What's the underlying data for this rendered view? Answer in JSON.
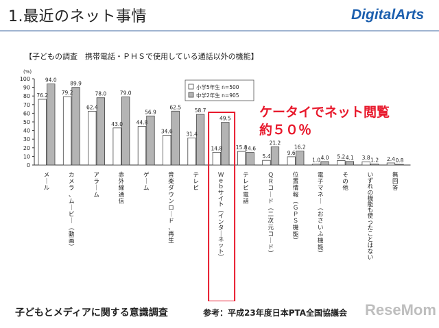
{
  "slide": {
    "title": "1.最近のネット事情",
    "logo_text": "DigitalArts",
    "footer_left": "子どもとメディアに関する意識調査",
    "footer_right": "参考：平成23年度日本PTA全国協議会",
    "watermark": "ReseMom"
  },
  "annotation": {
    "line1": "ケータイでネット閲覧",
    "line2": "約５０％",
    "color": "#e8192c"
  },
  "chart_data": {
    "type": "bar",
    "title": "【子どもの調査　携帯電話・ＰＨＳで使用している通話以外の機能】",
    "ylabel": "(%)",
    "ylim": [
      0,
      100
    ],
    "yticks": [
      "0",
      "10",
      "20",
      "30",
      "40",
      "50",
      "60",
      "70",
      "80",
      "90",
      "100"
    ],
    "categories": [
      "メール",
      "カメラ、ムービー（動画）",
      "アラーム",
      "赤外線通信",
      "ゲーム",
      "音楽ダウンロード、再生",
      "テレビ",
      "Ｗｅｂサイト（インターネット）",
      "テレビ電話",
      "ＱＲコード（二次元コード）",
      "位置情報（ＧＰＳ機能）",
      "電子マネー（おさいふ機能）",
      "その他",
      "いずれの機能も使ったことはない",
      "無回答"
    ],
    "series": [
      {
        "name": "小学5年生 n=500",
        "color": "#ffffff",
        "values": [
          76.2,
          79.2,
          62.4,
          43.0,
          44.8,
          34.6,
          31.4,
          14.8,
          15.8,
          5.4,
          9.6,
          1.0,
          5.2,
          3.8,
          2.4
        ],
        "labels": [
          "76.2",
          "79.2",
          "62.4",
          "43.0",
          "44.8",
          "34.6",
          "31.4",
          "14.8",
          "15.8",
          "5.4",
          "9.6",
          "1.0",
          "5.2",
          "3.8",
          "2.4"
        ]
      },
      {
        "name": "中学2年生 n=905",
        "color": "#b4b4b4",
        "values": [
          94.0,
          89.9,
          78.0,
          79.0,
          56.9,
          62.5,
          58.7,
          49.5,
          14.6,
          21.2,
          16.2,
          4.0,
          4.1,
          1.2,
          0.8
        ],
        "labels": [
          "94.0",
          "89.9",
          "78.0",
          "79.0",
          "56.9",
          "62.5",
          "58.7",
          "49.5",
          "14.6",
          "21.2",
          "16.2",
          "4.0",
          "4.1",
          "1.2",
          "0.8"
        ]
      }
    ],
    "highlight_category": "Ｗｅｂサイト（インターネット）",
    "highlight_color": "#e8192c",
    "grid": false,
    "legend_position": "top-right"
  }
}
